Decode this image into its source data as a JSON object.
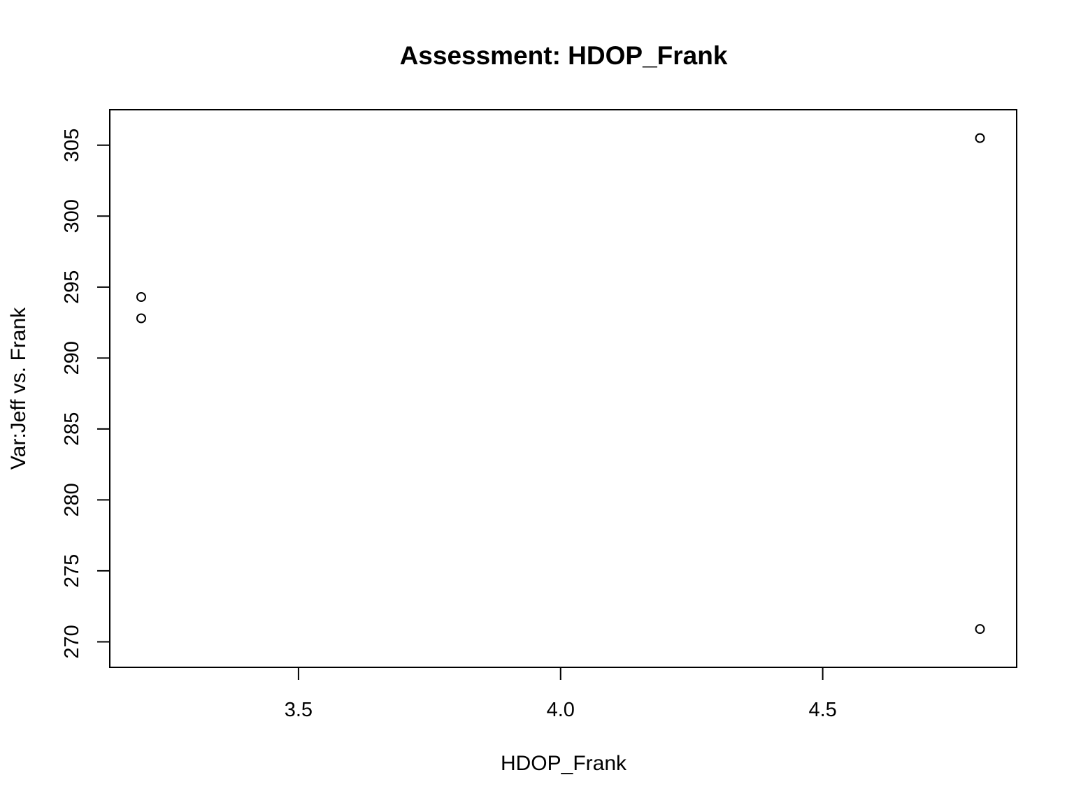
{
  "chart_data": {
    "type": "scatter",
    "title": "Assessment: HDOP_Frank",
    "xlabel": "HDOP_Frank",
    "ylabel": "Var:Jeff vs. Frank",
    "xlim": [
      3.14,
      4.87
    ],
    "ylim": [
      268.2,
      307.5
    ],
    "xticks": [
      3.5,
      4.0,
      4.5
    ],
    "xtick_labels": [
      "3.5",
      "4.0",
      "4.5"
    ],
    "yticks": [
      270,
      275,
      280,
      285,
      290,
      295,
      300,
      305
    ],
    "ytick_labels": [
      "270",
      "275",
      "280",
      "285",
      "290",
      "295",
      "300",
      "305"
    ],
    "points": [
      {
        "x": 3.2,
        "y": 294.3
      },
      {
        "x": 3.2,
        "y": 292.8
      },
      {
        "x": 4.8,
        "y": 305.5
      },
      {
        "x": 4.8,
        "y": 270.9
      }
    ],
    "grid": false,
    "legend": "none",
    "colors": {
      "marker": "#000000",
      "frame": "#000000",
      "background": "#ffffff"
    }
  }
}
